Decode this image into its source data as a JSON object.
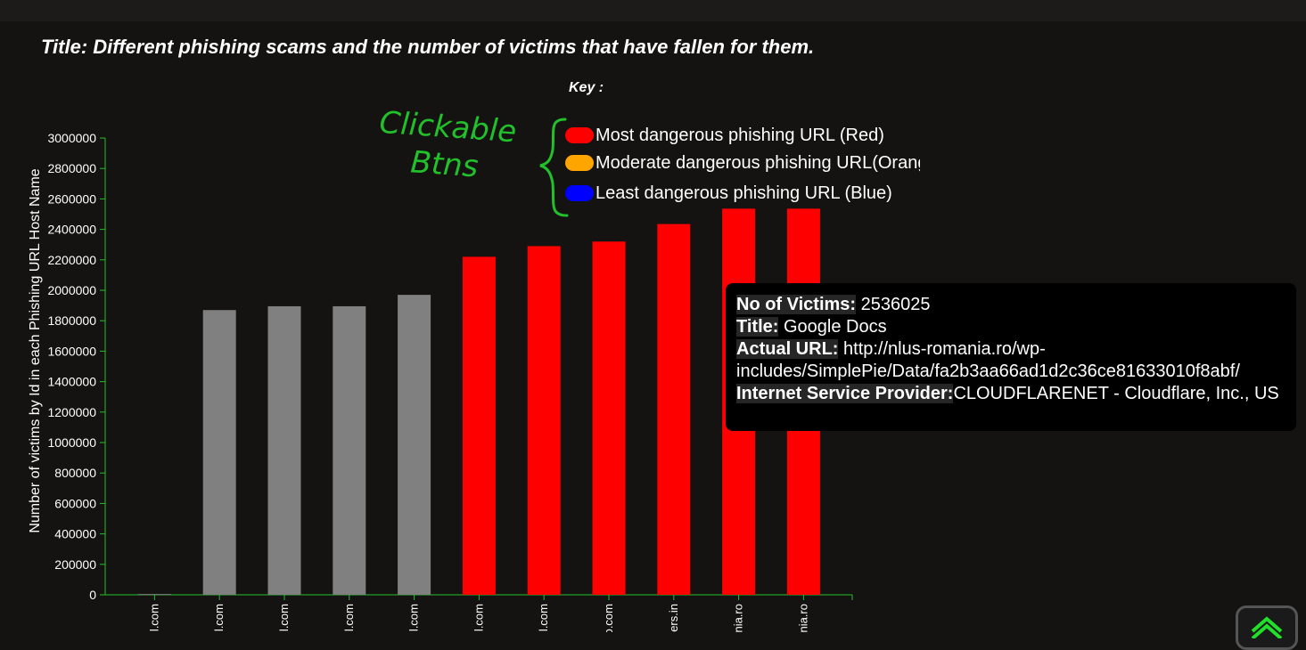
{
  "page": {
    "title": "Title: Different phishing scams and the number of victims that have fallen for them."
  },
  "legend": {
    "heading": "Key :",
    "items": [
      {
        "label": "Most dangerous phishing URL (Red)",
        "color": "#ff0000"
      },
      {
        "label": "Moderate dangerous phishing URL(Orange)",
        "color": "#ffa500"
      },
      {
        "label": "Least dangerous phishing URL (Blue)",
        "color": "#0000ff"
      }
    ]
  },
  "annotation": {
    "line1": "Clickable",
    "line2": "Btns",
    "color": "#22c02a"
  },
  "tooltip": {
    "victims_label": "No of Victims:",
    "victims_value": "2536025",
    "title_label": "Title:",
    "title_value": "Google Docs",
    "url_label": "Actual URL:",
    "url_value": "http://nlus-romania.ro/wp-includes/SimplePie/Data/fa2b3aa66ad1d2c36ce81633010f8abf/",
    "isp_label": "Internet Service Provider:",
    "isp_value": "CLOUDFLARENET - Cloudflare, Inc., US"
  },
  "chart_data": {
    "type": "bar",
    "ylabel": "Number of victims by Id in each Phishing URL Host Name",
    "xlabel": "",
    "ylim": [
      0,
      3000000
    ],
    "yticks": [
      0,
      200000,
      400000,
      600000,
      800000,
      1000000,
      1200000,
      1400000,
      1600000,
      1800000,
      2000000,
      2200000,
      2400000,
      2600000,
      2800000,
      3000000
    ],
    "categories": [
      "l.com",
      "l.com",
      "l.com",
      "l.com",
      "l.com",
      "l.com",
      "l.com",
      "o.com",
      "ers.in",
      "nia.ro",
      "nia.ro"
    ],
    "values": [
      5000,
      1870000,
      1895000,
      1895000,
      1970000,
      2220000,
      2290000,
      2320000,
      2435000,
      2536025,
      2536025
    ],
    "bar_colors": [
      "#808080",
      "#808080",
      "#808080",
      "#808080",
      "#808080",
      "#ff0000",
      "#ff0000",
      "#ff0000",
      "#ff0000",
      "#ff0000",
      "#ff0000"
    ],
    "axis_color": "#22c02a",
    "grid": false,
    "legend_position": "top"
  }
}
